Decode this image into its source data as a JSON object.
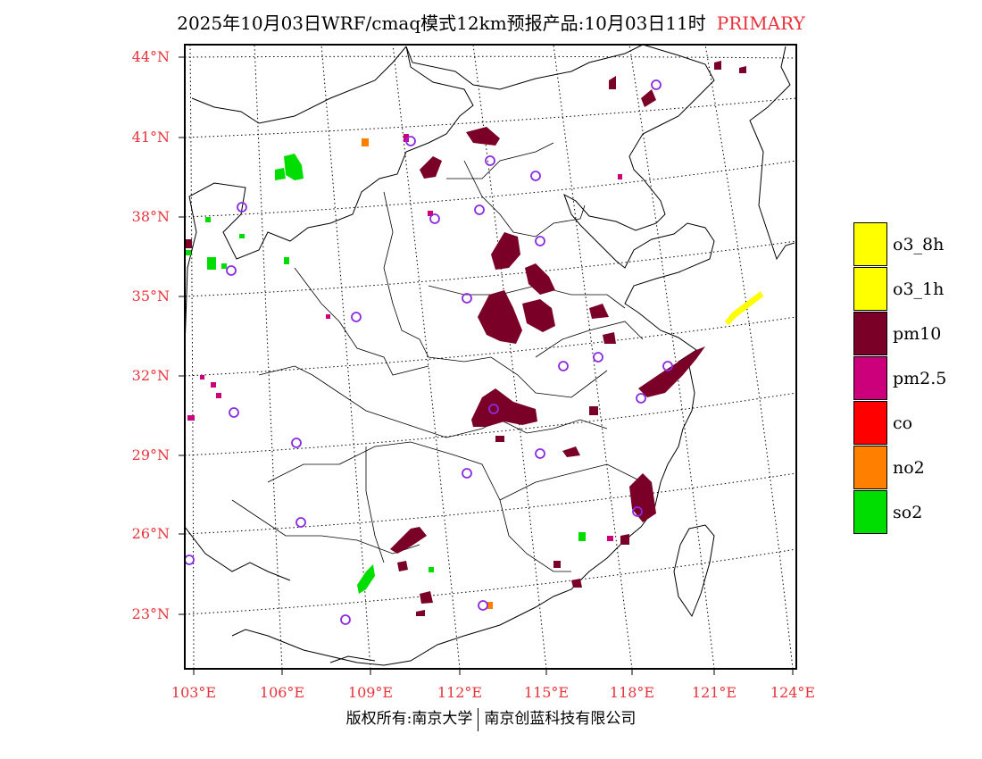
{
  "title": {
    "main": "2025年10月03日WRF/cmaq模式12km预报产品:10月03日11时",
    "tag": "PRIMARY"
  },
  "axes": {
    "lat_labels": [
      "44°N",
      "41°N",
      "38°N",
      "35°N",
      "32°N",
      "29°N",
      "26°N",
      "23°N"
    ],
    "lon_labels": [
      "103°E",
      "106°E",
      "109°E",
      "112°E",
      "115°E",
      "118°E",
      "121°E",
      "124°E"
    ]
  },
  "legend": {
    "items": [
      {
        "label": "o3_8h",
        "color": "#ffff00"
      },
      {
        "label": "o3_1h",
        "color": "#ffff00"
      },
      {
        "label": "pm10",
        "color": "#7a0028"
      },
      {
        "label": "pm2.5",
        "color": "#cc007a"
      },
      {
        "label": "co",
        "color": "#ff0000"
      },
      {
        "label": "no2",
        "color": "#ff7f00"
      },
      {
        "label": "so2",
        "color": "#00dd00"
      }
    ]
  },
  "footer": {
    "left": "版权所有:南京大学",
    "right": "南京创蓝科技有限公司"
  },
  "colors": {
    "accent": "#e8323c",
    "station": "#8a2be2"
  }
}
